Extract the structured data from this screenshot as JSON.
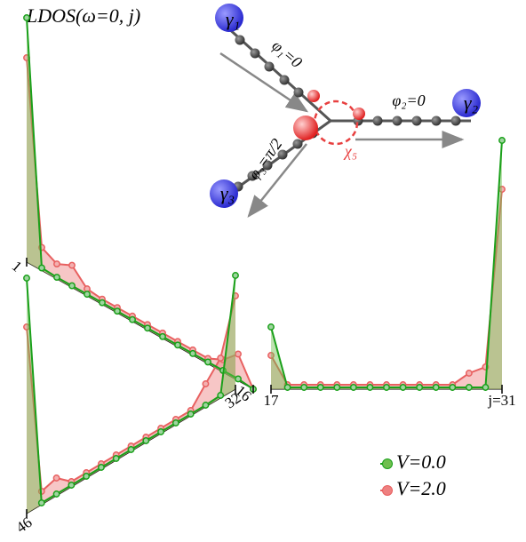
{
  "chart_data": {
    "type": "junction-ldos",
    "title": "LDOS(ω=0, j)",
    "x": [
      [
        1,
        2,
        3,
        4,
        5,
        6,
        7,
        8,
        9,
        10,
        11,
        12,
        13,
        14,
        15,
        16
      ],
      [
        17,
        18,
        19,
        20,
        21,
        22,
        23,
        24,
        25,
        26,
        27,
        28,
        29,
        30,
        31
      ],
      [
        32,
        33,
        34,
        35,
        36,
        37,
        38,
        39,
        40,
        41,
        42,
        43,
        44,
        45,
        46
      ]
    ],
    "series": [
      {
        "name": "V=0.0",
        "color": "#1aa01a",
        "fill": "#6fbf4f",
        "values": [
          [
            2.75,
            0.03,
            0.02,
            0.02,
            0.02,
            0.02,
            0.02,
            0.02,
            0.02,
            0.02,
            0.02,
            0.02,
            0.02,
            0.02,
            0.02,
            0.0
          ],
          [
            0.7,
            0.02,
            0.02,
            0.02,
            0.02,
            0.02,
            0.02,
            0.02,
            0.02,
            0.02,
            0.02,
            0.02,
            0.02,
            0.02,
            2.8
          ],
          [
            1.28,
            0.03,
            0.02,
            0.02,
            0.02,
            0.02,
            0.02,
            0.02,
            0.02,
            0.02,
            0.02,
            0.02,
            0.02,
            0.02,
            2.65
          ]
        ]
      },
      {
        "name": "V=2.0",
        "color": "#e86060",
        "fill": "#ee8080",
        "values": [
          [
            2.3,
            0.26,
            0.17,
            0.25,
            0.08,
            0.06,
            0.06,
            0.06,
            0.06,
            0.06,
            0.06,
            0.06,
            0.06,
            0.14,
            0.3,
            0.0
          ],
          [
            0.38,
            0.05,
            0.05,
            0.05,
            0.05,
            0.05,
            0.05,
            0.05,
            0.05,
            0.05,
            0.05,
            0.05,
            0.18,
            0.25,
            2.25
          ],
          [
            1.05,
            0.45,
            0.26,
            0.06,
            0.06,
            0.06,
            0.06,
            0.06,
            0.06,
            0.06,
            0.06,
            0.06,
            0.2,
            0.15,
            2.1
          ]
        ]
      }
    ],
    "xticks": [
      1,
      16,
      17,
      32,
      46,
      {
        "value": 31,
        "label": "j=31"
      }
    ],
    "inset": {
      "phi1": "φ₁=0",
      "phi2": "φ₂=0",
      "phi3": "φ₃=π/2",
      "gamma1": "γ₁",
      "gamma2": "γ₂",
      "gamma3": "γ₃",
      "chi5": "χ₅"
    }
  }
}
